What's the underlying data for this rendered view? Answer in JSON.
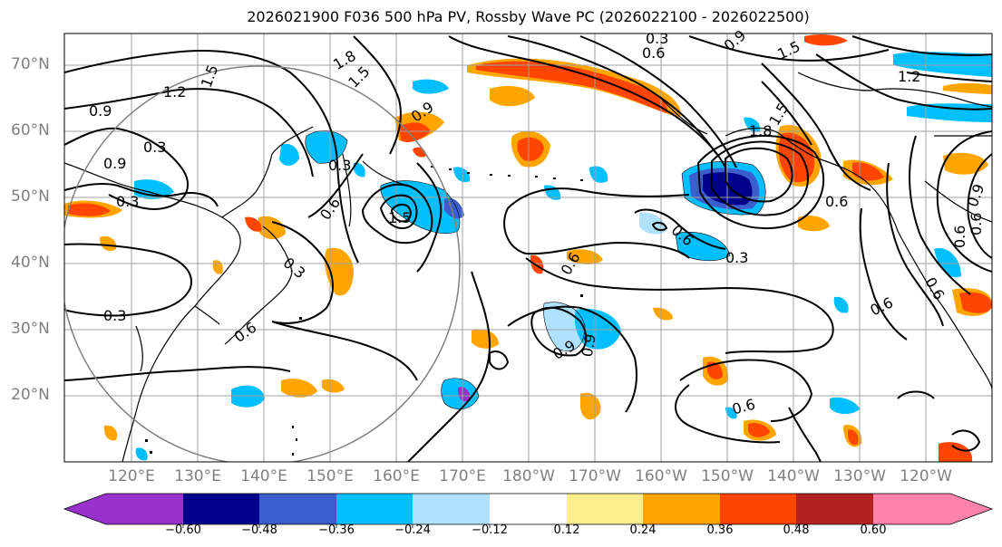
{
  "title": "2026021900 F036 500 hPa PV, Rossby Wave PC (2026022100 - 2026022500)",
  "lat_labels": [
    "70°N",
    "60°N",
    "50°N",
    "40°N",
    "30°N",
    "20°N"
  ],
  "lon_labels": [
    "120°E",
    "130°E",
    "140°E",
    "150°E",
    "160°E",
    "170°E",
    "180°W",
    "170°W",
    "160°W",
    "150°W",
    "140°W",
    "130°W",
    "120°W"
  ],
  "colorbar": {
    "ticks": [
      "−0.60",
      "−0.48",
      "−0.36",
      "−0.24",
      "−0.12",
      "0.12",
      "0.24",
      "0.36",
      "0.48",
      "0.60"
    ],
    "colors": [
      "#9932cc",
      "#00008b",
      "#3a5fcd",
      "#00bfff",
      "#b0e2ff",
      "#ffffff",
      "#ffec8b",
      "#ffa500",
      "#ff4500",
      "#b22222",
      "#ff82ab"
    ]
  },
  "contour_labels": [
    "1.2",
    "1.5",
    "0.9",
    "0.3",
    "0.3",
    "0.9",
    "1.8",
    "1.5",
    "1.5",
    "0.6",
    "0.3",
    "0.3",
    "0.6",
    "0.3",
    "0.6",
    "0.9",
    "0.3",
    "0.6",
    "0.9",
    "0.6",
    "0.9",
    "1.5",
    "1.8",
    "0.6",
    "1.5",
    "1.2",
    "0.6",
    "0.3",
    "0.6",
    "0.6",
    "0.9",
    "0.6",
    "0.6",
    "0.9"
  ]
}
